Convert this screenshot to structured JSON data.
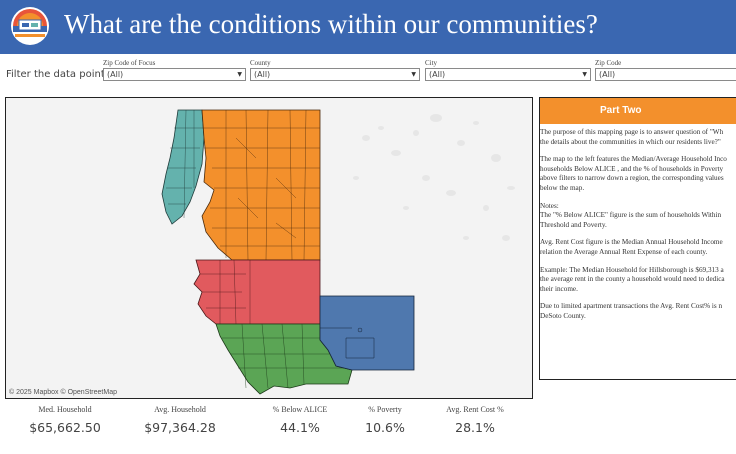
{
  "header": {
    "title": "What are the conditions within our communities?"
  },
  "filters": {
    "label": "Filter the data points:",
    "items": [
      {
        "label": "Zip Code of Focus",
        "value": "(All)"
      },
      {
        "label": "County",
        "value": "(All)"
      },
      {
        "label": "City",
        "value": "(All)"
      },
      {
        "label": "Zip Code",
        "value": "(All)"
      }
    ]
  },
  "map": {
    "attribution": "© 2025 Mapbox  © OpenStreetMap",
    "regions": [
      {
        "name": "teal",
        "color": "#64b2ad"
      },
      {
        "name": "orange",
        "color": "#f3902c"
      },
      {
        "name": "red",
        "color": "#e15a5e"
      },
      {
        "name": "green",
        "color": "#5ba555"
      },
      {
        "name": "blue",
        "color": "#4f78ae"
      }
    ]
  },
  "panel": {
    "title": "Part Two",
    "paragraphs": [
      [
        "The purpose of this mapping page is to answer question of \"Wh",
        "the details about the communities in which our residents live?\""
      ],
      [
        "The map to the left features the Median/Average Household Inco",
        "households Below ALICE , and the % of households in Poverty",
        "above filters to narrow down a region, the corresponding values",
        "below the map."
      ],
      [
        "Notes:",
        "The \"% Below ALICE\" figure is the sum of households Within",
        "Threshold and Poverty."
      ],
      [
        "Avg. Rent Cost figure is the Median Annual Household Income",
        "relation the Average Annual Rent Expense of each county."
      ],
      [
        "Example: The Median Household for Hillsborough is $69,313 a",
        "the average rent in the county a household would need to dedica",
        "their income."
      ],
      [
        "Due to limited apartment transactions the Avg. Rent Cost% is n",
        "DeSoto County."
      ]
    ]
  },
  "metrics": [
    {
      "label": "Med. Household",
      "value": "$65,662.50"
    },
    {
      "label": "Avg. Household",
      "value": "$97,364.28"
    },
    {
      "label": "% Below ALICE",
      "value": "44.1%"
    },
    {
      "label": "% Poverty",
      "value": "10.6%"
    },
    {
      "label": "Avg. Rent Cost %",
      "value": "28.1%"
    }
  ]
}
